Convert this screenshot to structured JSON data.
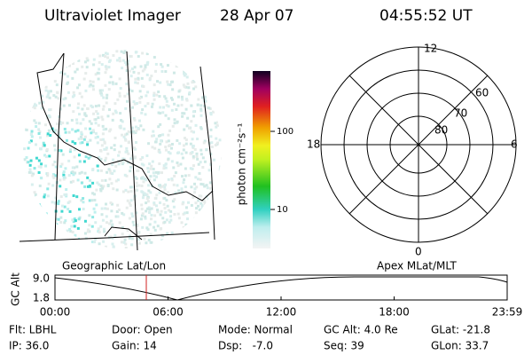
{
  "header": {
    "instrument": "Ultraviolet Imager",
    "date": "28 Apr 07",
    "time": "04:55:52 UT"
  },
  "colorbar": {
    "label": "photon cm⁻²s⁻¹",
    "ticks": [
      "100",
      "10"
    ]
  },
  "map": {
    "caption": "Geographic Lat/Lon"
  },
  "polar": {
    "caption": "Apex MLat/MLT",
    "mlt_labels": [
      "12",
      "18",
      "6",
      "0"
    ],
    "lat_labels": [
      "60",
      "70",
      "80"
    ]
  },
  "altitude_plot": {
    "axis_title": "GC Alt",
    "yticks": [
      "9.0",
      "1.8"
    ],
    "xticks": [
      "00:00",
      "06:00",
      "12:00",
      "18:00",
      "23:59"
    ]
  },
  "status": {
    "rows": [
      [
        "Flt: LBHL",
        "Door: Open",
        "Mode: Normal",
        "GC Alt: 4.0 Re",
        "GLat: -21.8"
      ],
      [
        "IP: 36.0",
        "Gain: 14",
        "Dsp:   -7.0",
        "Seq: 39",
        "GLon: 33.7"
      ]
    ]
  }
}
